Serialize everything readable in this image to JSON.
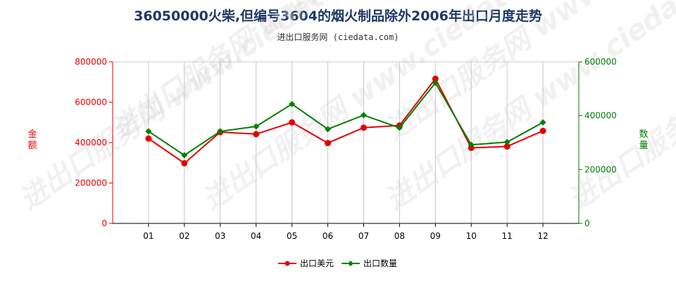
{
  "chart_data": {
    "type": "line",
    "title": "36050000火柴,但编号3604的烟火制品除外2006年出口月度走势",
    "subtitle": "进出口服务网 (ciedata.com)",
    "watermark": "进出口服务网 www.ciedata.com",
    "categories": [
      "01",
      "02",
      "03",
      "04",
      "05",
      "06",
      "07",
      "08",
      "09",
      "10",
      "11",
      "12"
    ],
    "y_left": {
      "label": "金额",
      "range": [
        0,
        800000
      ],
      "ticks": [
        "0",
        "200000",
        "400000",
        "600000",
        "800000"
      ]
    },
    "y_right": {
      "label": "数量",
      "range": [
        0,
        600000
      ],
      "ticks": [
        "0",
        "200000",
        "400000",
        "600000"
      ]
    },
    "grid": "vertical",
    "legend_position": "bottom",
    "series": [
      {
        "name": "出口美元",
        "axis": "left",
        "color": "#e60000",
        "values": [
          420000,
          298000,
          452000,
          442000,
          500000,
          398000,
          474000,
          485000,
          716000,
          374000,
          381000,
          458000
        ]
      },
      {
        "name": "出口数量",
        "axis": "right",
        "color": "#008000",
        "values": [
          342000,
          253000,
          342000,
          360000,
          443000,
          350000,
          402000,
          355000,
          522000,
          292000,
          302000,
          375000
        ]
      }
    ]
  }
}
